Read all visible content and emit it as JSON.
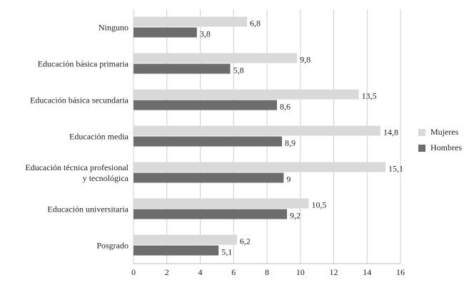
{
  "chart_data": {
    "type": "hbar",
    "categories": [
      "Ninguno",
      "Educación básica primaria",
      "Educación básica secundaria",
      "Educación media",
      "Educación técnica profesional\ny tecnológica",
      "Educación universitaria",
      "Posgrado"
    ],
    "series": [
      {
        "name": "Mujeres",
        "color": "#d9d9d9",
        "values": [
          6.8,
          9.8,
          13.5,
          14.8,
          15.1,
          10.5,
          6.2
        ],
        "value_labels": [
          "6,8",
          "9,8",
          "13,5",
          "14,8",
          "15,1",
          "10,5",
          "6,2"
        ]
      },
      {
        "name": "Hombres",
        "color": "#6d6d6d",
        "values": [
          3.8,
          5.8,
          8.6,
          8.9,
          9,
          9.2,
          5.1
        ],
        "value_labels": [
          "3,8",
          "5,8",
          "8,6",
          "8,9",
          "9",
          "9,2",
          "5,1"
        ]
      }
    ],
    "xlim": [
      0,
      16
    ],
    "xticks": [
      0,
      2,
      4,
      6,
      8,
      10,
      12,
      14,
      16
    ],
    "grid": true,
    "legend": "right"
  }
}
